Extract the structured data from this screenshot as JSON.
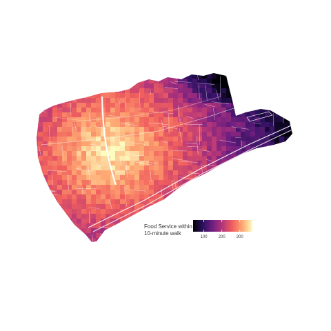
{
  "legend": {
    "title_line1": "Food Service within",
    "title_line2": "10-minute walk",
    "ticks": [
      100,
      200,
      300
    ],
    "range": [
      40,
      370
    ],
    "colors": [
      "#000004",
      "#2c115f",
      "#721f81",
      "#b73779",
      "#f1605d",
      "#fea873",
      "#fcfdbf"
    ]
  }
}
